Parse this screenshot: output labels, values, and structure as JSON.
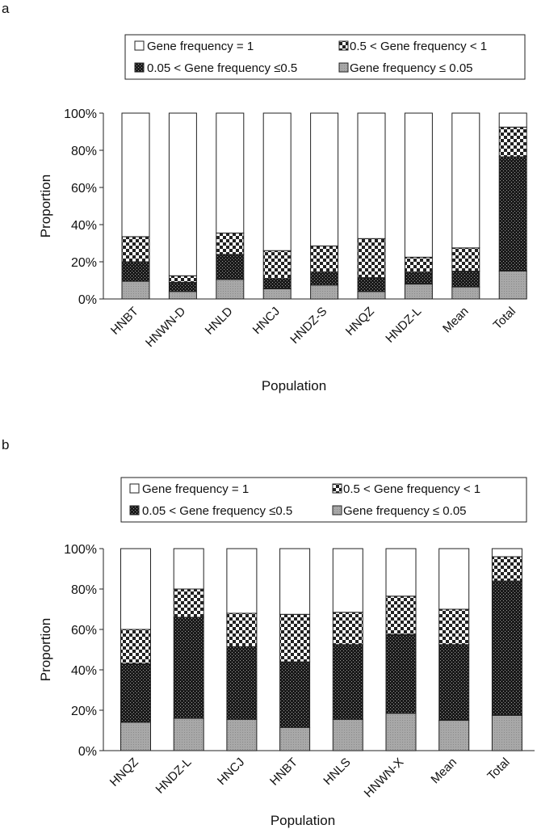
{
  "panels": [
    {
      "label": "a",
      "legend": [
        {
          "text": "Gene frequency = 1",
          "pattern": "white"
        },
        {
          "text": "0.5 < Gene frequency < 1",
          "pattern": "checker"
        },
        {
          "text": "0.05 < Gene frequency ≤0.5",
          "pattern": "dots"
        },
        {
          "text": "Gene frequency ≤ 0.05",
          "pattern": "gray"
        }
      ]
    },
    {
      "label": "b",
      "legend": [
        {
          "text": "Gene frequency = 1",
          "pattern": "white"
        },
        {
          "text": "0.5 < Gene frequency < 1",
          "pattern": "checker"
        },
        {
          "text": "0.05 < Gene frequency ≤0.5",
          "pattern": "dots"
        },
        {
          "text": "Gene frequency ≤ 0.05",
          "pattern": "gray"
        }
      ]
    }
  ],
  "chart_data": [
    {
      "type": "bar",
      "stacked": true,
      "panel": "a",
      "title": "",
      "xlabel": "Population",
      "ylabel": "Proportion",
      "ylim": [
        0,
        100
      ],
      "yticks": [
        "0%",
        "20%",
        "40%",
        "60%",
        "80%",
        "100%"
      ],
      "categories": [
        "HNBT",
        "HNWN-D",
        "HNLD",
        "HNCJ",
        "HNDZ-S",
        "HNQZ",
        "HNDZ-L",
        "Mean",
        "Total"
      ],
      "series": [
        {
          "name": "Gene frequency ≤ 0.05",
          "pattern": "gray",
          "values": [
            9.5,
            4,
            10.5,
            5.5,
            7.5,
            4,
            8,
            6.5,
            15
          ]
        },
        {
          "name": "0.05 < Gene frequency ≤0.5",
          "pattern": "dots",
          "values": [
            10.5,
            5,
            13.5,
            5.5,
            7,
            7.5,
            6.5,
            8.5,
            61.5
          ]
        },
        {
          "name": "0.5 < Gene frequency < 1",
          "pattern": "checker",
          "values": [
            13.5,
            3.5,
            11.5,
            15,
            14,
            21,
            8,
            12.5,
            16
          ]
        },
        {
          "name": "Gene frequency = 1",
          "pattern": "white",
          "values": [
            66.5,
            87.5,
            64.5,
            74,
            71.5,
            67.5,
            77.5,
            72.5,
            7.5
          ]
        }
      ]
    },
    {
      "type": "bar",
      "stacked": true,
      "panel": "b",
      "title": "",
      "xlabel": "Population",
      "ylabel": "Proportion",
      "ylim": [
        0,
        100
      ],
      "yticks": [
        "0%",
        "20%",
        "40%",
        "60%",
        "80%",
        "100%"
      ],
      "categories": [
        "HNQZ",
        "HNDZ-L",
        "HNCJ",
        "HNBT",
        "HNLS",
        "HNWN-X",
        "Mean",
        "Total"
      ],
      "series": [
        {
          "name": "Gene frequency ≤ 0.05",
          "pattern": "gray",
          "values": [
            14,
            16,
            15.5,
            11.5,
            15.5,
            18.5,
            15,
            17.5
          ]
        },
        {
          "name": "0.05 < Gene frequency ≤0.5",
          "pattern": "dots",
          "values": [
            29,
            50,
            36,
            32.5,
            37,
            39,
            37.5,
            66.5
          ]
        },
        {
          "name": "0.5 < Gene frequency < 1",
          "pattern": "checker",
          "values": [
            17,
            14,
            16.5,
            23.5,
            16,
            19,
            17.5,
            12
          ]
        },
        {
          "name": "Gene frequency = 1",
          "pattern": "white",
          "values": [
            40,
            20,
            32,
            32.5,
            31.5,
            23.5,
            30,
            4
          ]
        }
      ]
    }
  ]
}
